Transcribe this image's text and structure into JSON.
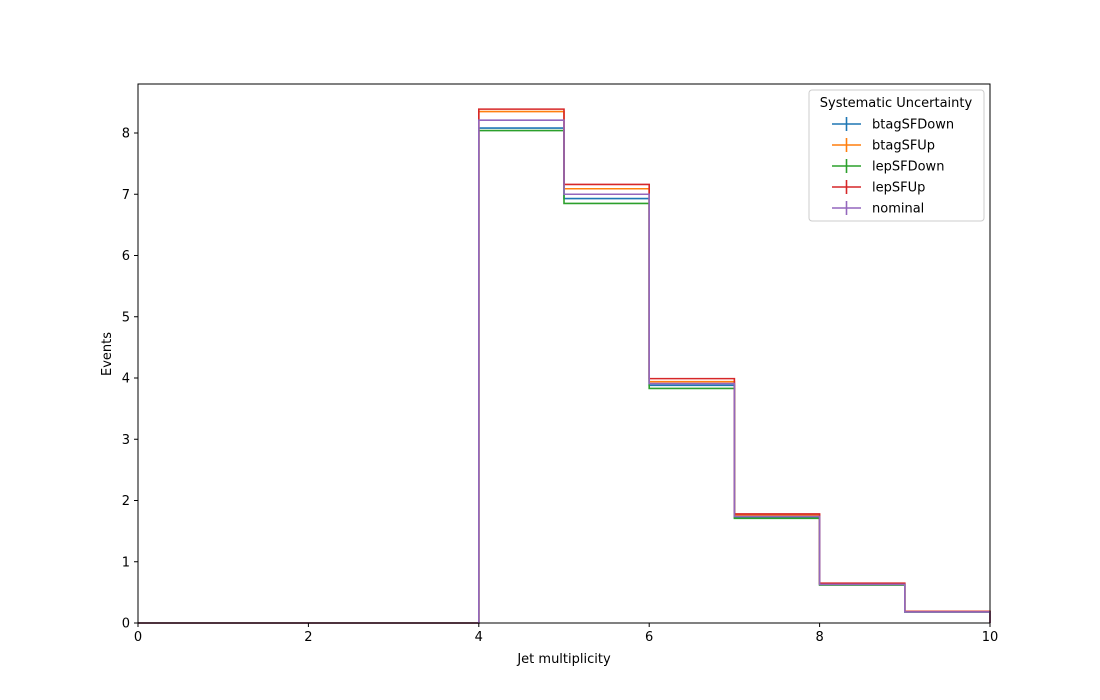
{
  "chart_data": {
    "type": "line",
    "subtype": "step-histogram",
    "title": "",
    "xlabel": "Jet multiplicity",
    "ylabel": "Events",
    "xlim": [
      0,
      10
    ],
    "ylim": [
      0,
      8.8
    ],
    "grid": false,
    "x_ticks": [
      0,
      2,
      4,
      6,
      8,
      10
    ],
    "y_ticks": [
      0,
      1,
      2,
      3,
      4,
      5,
      6,
      7,
      8
    ],
    "bin_edges": [
      0,
      1,
      2,
      3,
      4,
      5,
      6,
      7,
      8,
      9,
      10
    ],
    "legend": {
      "title": "Systematic Uncertainty",
      "placement": "top-right"
    },
    "series": [
      {
        "name": "btagSFDown",
        "color": "#1f77b4",
        "values": [
          0,
          0,
          0,
          0,
          8.08,
          6.93,
          3.88,
          1.73,
          0.63,
          0.18
        ]
      },
      {
        "name": "btagSFUp",
        "color": "#ff7f0e",
        "values": [
          0,
          0,
          0,
          0,
          8.35,
          7.09,
          3.94,
          1.76,
          0.64,
          0.19
        ]
      },
      {
        "name": "lepSFDown",
        "color": "#2ca02c",
        "values": [
          0,
          0,
          0,
          0,
          8.04,
          6.85,
          3.83,
          1.71,
          0.62,
          0.18
        ]
      },
      {
        "name": "lepSFUp",
        "color": "#d62728",
        "values": [
          0,
          0,
          0,
          0,
          8.39,
          7.16,
          3.99,
          1.78,
          0.65,
          0.19
        ]
      },
      {
        "name": "nominal",
        "color": "#9467bd",
        "values": [
          0,
          0,
          0,
          0,
          8.21,
          7.0,
          3.91,
          1.74,
          0.63,
          0.18
        ]
      }
    ]
  }
}
